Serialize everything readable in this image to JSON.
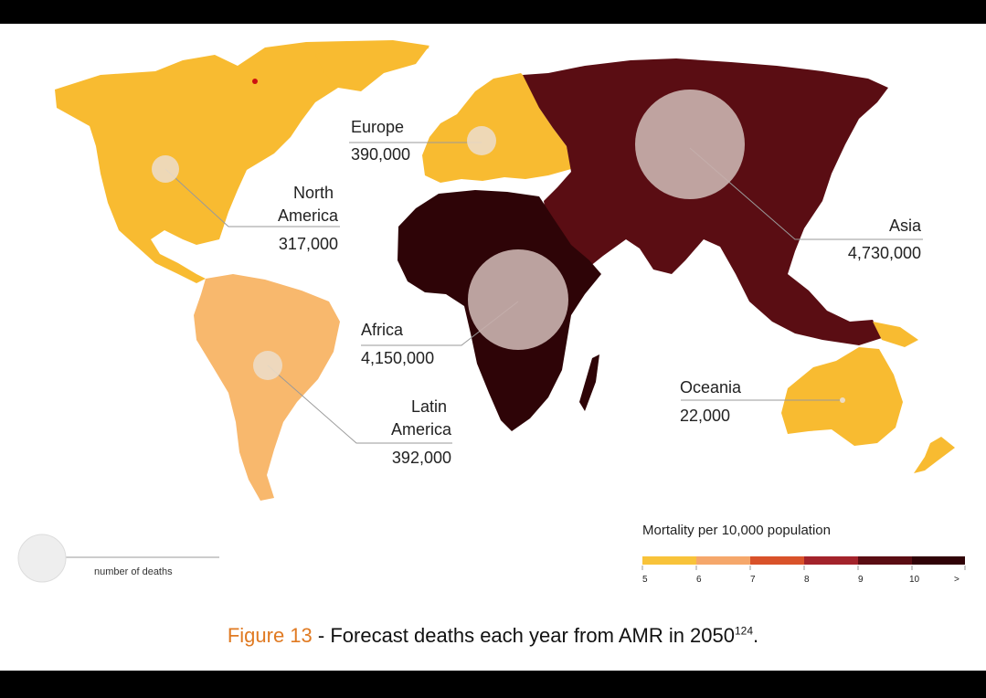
{
  "colors": {
    "na_europe_oceania": "#f8bb31",
    "latin_america": "#f8b86d",
    "asia": "#5a0d13",
    "africa": "#2e0407",
    "bubble_large": "#c8b0ad",
    "bubble_small": "#ecdcc5",
    "caption_accent": "#e07a22"
  },
  "regions": [
    {
      "name": "North America",
      "label_lines": [
        "North",
        "America"
      ],
      "value": "317,000"
    },
    {
      "name": "Europe",
      "label_lines": [
        "Europe"
      ],
      "value": "390,000"
    },
    {
      "name": "Asia",
      "label_lines": [
        "Asia"
      ],
      "value": "4,730,000"
    },
    {
      "name": "Africa",
      "label_lines": [
        "Africa"
      ],
      "value": "4,150,000"
    },
    {
      "name": "Latin America",
      "label_lines": [
        "Latin",
        "America"
      ],
      "value": "392,000"
    },
    {
      "name": "Oceania",
      "label_lines": [
        "Oceania"
      ],
      "value": "22,000"
    }
  ],
  "legend": {
    "title": "Mortality per 10,000 population",
    "ticks": [
      "5",
      "6",
      "7",
      "8",
      "9",
      "10",
      ">"
    ],
    "segments": [
      "#f8c33a",
      "#f5a76b",
      "#d9522a",
      "#a3232b",
      "#5a0d13",
      "#300307"
    ],
    "size_key_label": "number of deaths"
  },
  "caption": {
    "figure": "Figure 13",
    "text": " - Forecast deaths each year from AMR in 2050",
    "sup": "124",
    "end": "."
  }
}
